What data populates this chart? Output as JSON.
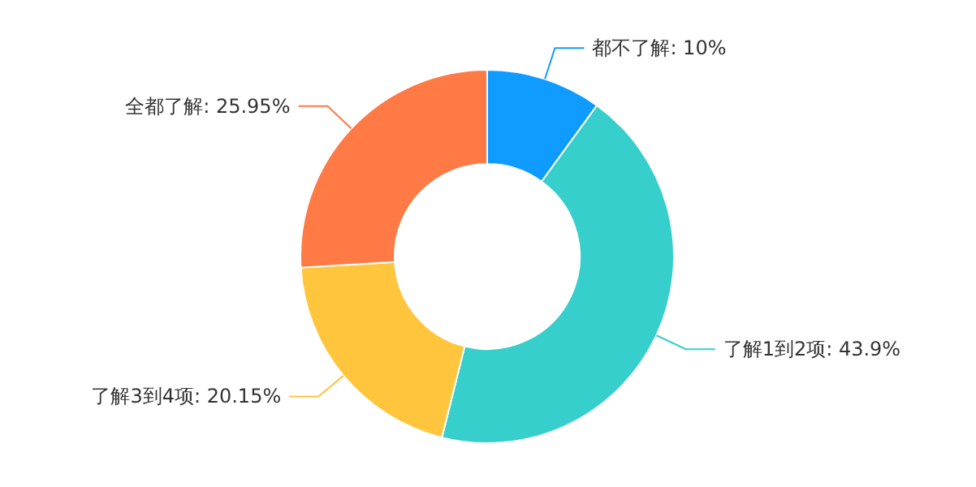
{
  "chart_data": {
    "type": "donut",
    "categories": [
      "都不了解",
      "了解1到2项",
      "了解3到4项",
      "全都了解"
    ],
    "values": [
      10,
      43.9,
      20.15,
      25.95
    ],
    "value_labels": [
      "10%",
      "43.9%",
      "20.15%",
      "25.95%"
    ],
    "colors": [
      "#0f9bff",
      "#36cfcb",
      "#ffc53d",
      "#ff7a45"
    ],
    "legend": false
  }
}
